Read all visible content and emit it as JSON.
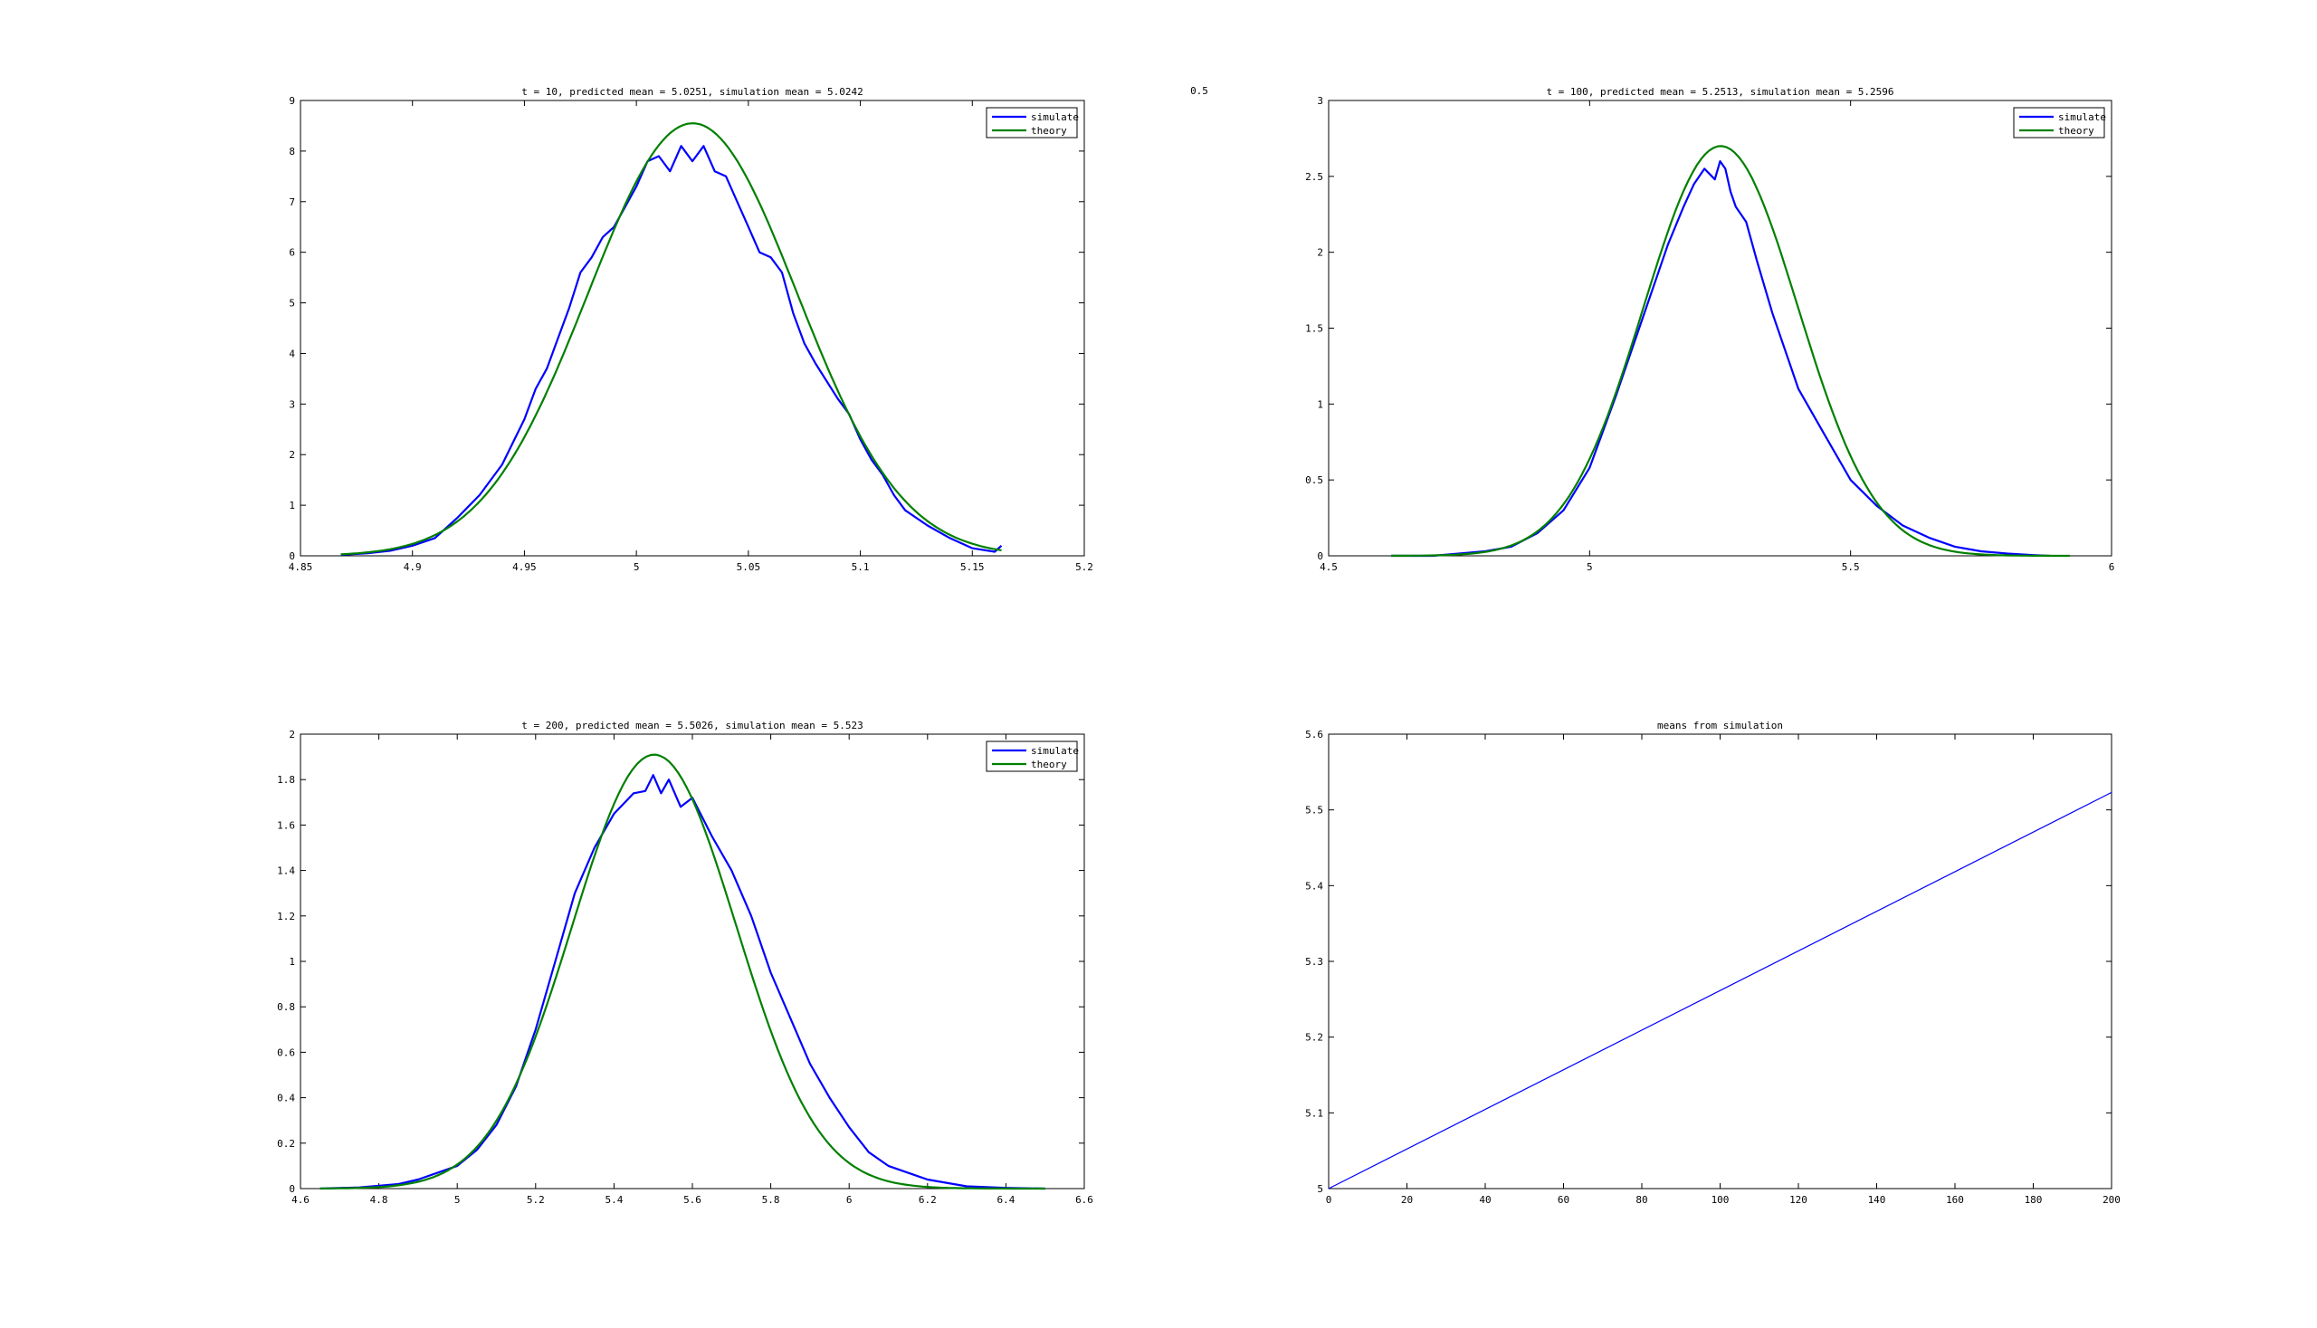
{
  "figure": {
    "stray_text": "0.5",
    "line_color_simulate": "#0000ff",
    "line_color_theory": "#008000"
  },
  "chart_data": [
    {
      "type": "line",
      "title": "t = 10,  predicted mean = 5.0251,  simulation mean = 5.0242",
      "xlabel": "",
      "ylabel": "",
      "xlim": [
        4.85,
        5.2
      ],
      "ylim": [
        0,
        9
      ],
      "xticks": [
        4.85,
        4.9,
        4.95,
        5,
        5.05,
        5.1,
        5.15,
        5.2
      ],
      "xtick_labels": [
        "4.85",
        "4.9",
        "4.95",
        "5",
        "5.05",
        "5.1",
        "5.15",
        "5.2"
      ],
      "yticks": [
        0,
        1,
        2,
        3,
        4,
        5,
        6,
        7,
        8,
        9
      ],
      "ytick_labels": [
        "0",
        "1",
        "2",
        "3",
        "4",
        "5",
        "6",
        "7",
        "8",
        "9"
      ],
      "legend": {
        "position": "top-right",
        "entries": [
          "simulate",
          "theory"
        ]
      },
      "series": [
        {
          "name": "simulate",
          "color": "#0000ff",
          "x": [
            4.868,
            4.88,
            4.89,
            4.9,
            4.91,
            4.915,
            4.92,
            4.93,
            4.94,
            4.95,
            4.955,
            4.96,
            4.965,
            4.97,
            4.975,
            4.98,
            4.985,
            4.99,
            4.995,
            5.0,
            5.005,
            5.01,
            5.015,
            5.02,
            5.025,
            5.03,
            5.035,
            5.04,
            5.045,
            5.05,
            5.055,
            5.06,
            5.065,
            5.07,
            5.075,
            5.08,
            5.09,
            5.095,
            5.1,
            5.105,
            5.11,
            5.115,
            5.12,
            5.13,
            5.14,
            5.15,
            5.16,
            5.163
          ],
          "y": [
            0.02,
            0.05,
            0.1,
            0.2,
            0.35,
            0.55,
            0.75,
            1.2,
            1.8,
            2.7,
            3.3,
            3.7,
            4.3,
            4.9,
            5.6,
            5.9,
            6.3,
            6.5,
            6.9,
            7.3,
            7.8,
            7.9,
            7.6,
            8.1,
            7.8,
            8.1,
            7.6,
            7.5,
            7.0,
            6.5,
            6.0,
            5.9,
            5.6,
            4.8,
            4.2,
            3.8,
            3.1,
            2.8,
            2.3,
            1.9,
            1.6,
            1.2,
            0.9,
            0.6,
            0.35,
            0.15,
            0.08,
            0.2
          ]
        },
        {
          "name": "theory",
          "color": "#008000",
          "curve": "gaussian",
          "mean": 5.0251,
          "peak": 8.55,
          "sigma": 0.0467,
          "xrange": [
            4.868,
            5.163
          ]
        }
      ]
    },
    {
      "type": "line",
      "title": "t = 100,  predicted mean = 5.2513,  simulation mean = 5.2596",
      "xlabel": "",
      "ylabel": "",
      "xlim": [
        4.5,
        6
      ],
      "ylim": [
        0,
        3
      ],
      "xticks": [
        4.5,
        5,
        5.5,
        6
      ],
      "xtick_labels": [
        "4.5",
        "5",
        "5.5",
        "6"
      ],
      "yticks": [
        0,
        0.5,
        1,
        1.5,
        2,
        2.5,
        3
      ],
      "ytick_labels": [
        "0",
        "0.5",
        "1",
        "1.5",
        "2",
        "2.5",
        "3"
      ],
      "legend": {
        "position": "top-right",
        "entries": [
          "simulate",
          "theory"
        ]
      },
      "series": [
        {
          "name": "simulate",
          "color": "#0000ff",
          "x": [
            4.62,
            4.7,
            4.8,
            4.85,
            4.9,
            4.95,
            5.0,
            5.05,
            5.1,
            5.15,
            5.18,
            5.2,
            5.22,
            5.24,
            5.25,
            5.26,
            5.27,
            5.28,
            5.3,
            5.32,
            5.35,
            5.38,
            5.4,
            5.45,
            5.5,
            5.55,
            5.6,
            5.65,
            5.7,
            5.75,
            5.8,
            5.85,
            5.88
          ],
          "y": [
            0.0,
            0.0,
            0.03,
            0.06,
            0.15,
            0.3,
            0.58,
            1.05,
            1.55,
            2.05,
            2.3,
            2.45,
            2.55,
            2.48,
            2.6,
            2.55,
            2.4,
            2.3,
            2.2,
            1.95,
            1.6,
            1.3,
            1.1,
            0.8,
            0.5,
            0.33,
            0.2,
            0.12,
            0.06,
            0.03,
            0.015,
            0.005,
            0.0
          ]
        },
        {
          "name": "theory",
          "color": "#008000",
          "curve": "gaussian",
          "mean": 5.2513,
          "peak": 2.7,
          "sigma": 0.148,
          "xrange": [
            4.62,
            5.92
          ]
        }
      ]
    },
    {
      "type": "line",
      "title": "t = 200,  predicted mean = 5.5026,  simulation mean = 5.523",
      "xlabel": "",
      "ylabel": "",
      "xlim": [
        4.6,
        6.6
      ],
      "ylim": [
        0,
        2
      ],
      "xticks": [
        4.6,
        4.8,
        5,
        5.2,
        5.4,
        5.6,
        5.8,
        6,
        6.2,
        6.4,
        6.6
      ],
      "xtick_labels": [
        "4.6",
        "4.8",
        "5",
        "5.2",
        "5.4",
        "5.6",
        "5.8",
        "6",
        "6.2",
        "6.4",
        "6.6"
      ],
      "yticks": [
        0,
        0.2,
        0.4,
        0.6,
        0.8,
        1,
        1.2,
        1.4,
        1.6,
        1.8,
        2
      ],
      "ytick_labels": [
        "0",
        "0.2",
        "0.4",
        "0.6",
        "0.8",
        "1",
        "1.2",
        "1.4",
        "1.6",
        "1.8",
        "2"
      ],
      "legend": {
        "position": "top-right",
        "entries": [
          "simulate",
          "theory"
        ]
      },
      "series": [
        {
          "name": "simulate",
          "color": "#0000ff",
          "x": [
            4.65,
            4.75,
            4.85,
            4.9,
            4.95,
            5.0,
            5.05,
            5.1,
            5.15,
            5.2,
            5.25,
            5.3,
            5.35,
            5.4,
            5.45,
            5.48,
            5.5,
            5.52,
            5.54,
            5.57,
            5.6,
            5.65,
            5.7,
            5.75,
            5.8,
            5.85,
            5.9,
            5.95,
            6.0,
            6.05,
            6.1,
            6.2,
            6.3,
            6.4,
            6.5
          ],
          "y": [
            0.0,
            0.005,
            0.02,
            0.04,
            0.07,
            0.1,
            0.17,
            0.28,
            0.45,
            0.7,
            1.0,
            1.3,
            1.5,
            1.65,
            1.74,
            1.75,
            1.82,
            1.74,
            1.8,
            1.68,
            1.72,
            1.55,
            1.4,
            1.2,
            0.95,
            0.75,
            0.55,
            0.4,
            0.27,
            0.16,
            0.1,
            0.04,
            0.01,
            0.003,
            0.0
          ]
        },
        {
          "name": "theory",
          "color": "#008000",
          "curve": "gaussian",
          "mean": 5.5026,
          "peak": 1.91,
          "sigma": 0.209,
          "xrange": [
            4.65,
            6.5
          ]
        }
      ]
    },
    {
      "type": "line",
      "title": "means from simulation",
      "xlabel": "",
      "ylabel": "",
      "xlim": [
        0,
        200
      ],
      "ylim": [
        5,
        5.6
      ],
      "xticks": [
        0,
        20,
        40,
        60,
        80,
        100,
        120,
        140,
        160,
        180,
        200
      ],
      "xtick_labels": [
        "0",
        "20",
        "40",
        "60",
        "80",
        "100",
        "120",
        "140",
        "160",
        "180",
        "200"
      ],
      "yticks": [
        5,
        5.1,
        5.2,
        5.3,
        5.4,
        5.5,
        5.6
      ],
      "ytick_labels": [
        "5",
        "5.1",
        "5.2",
        "5.3",
        "5.4",
        "5.5",
        "5.6"
      ],
      "series": [
        {
          "color": "#0000ff",
          "x": [
            0,
            200
          ],
          "y": [
            5.0,
            5.523
          ]
        }
      ]
    }
  ]
}
